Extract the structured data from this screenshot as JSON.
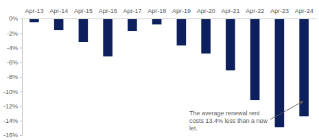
{
  "chart_data": {
    "type": "bar",
    "categories": [
      "Apr-13",
      "Apr-14",
      "Apr-15",
      "Apr-16",
      "Apr-17",
      "Apr-18",
      "Apr-19",
      "Apr-20",
      "Apr-21",
      "Apr-22",
      "Apr-23",
      "Apr-24"
    ],
    "values": [
      -0.5,
      -1.6,
      -3.2,
      -5.2,
      -1.7,
      -0.8,
      -3.7,
      -4.8,
      -7.1,
      -11.2,
      -14.9,
      -13.4
    ],
    "color": "#0d1f5c",
    "ylim": [
      -16,
      0
    ],
    "yticks": [
      {
        "value": 0,
        "label": "0%"
      },
      {
        "value": -2,
        "label": "-2%"
      },
      {
        "value": -4,
        "label": "-4%"
      },
      {
        "value": -6,
        "label": "-6%"
      },
      {
        "value": -8,
        "label": "-8%"
      },
      {
        "value": -10,
        "label": "-10%"
      },
      {
        "value": -12,
        "label": "-12%"
      },
      {
        "value": -14,
        "label": "-14%"
      },
      {
        "value": -16,
        "label": "-16%"
      }
    ],
    "grid": false,
    "annotation": "The average renewal rent costs 13.4% less than a new let."
  }
}
